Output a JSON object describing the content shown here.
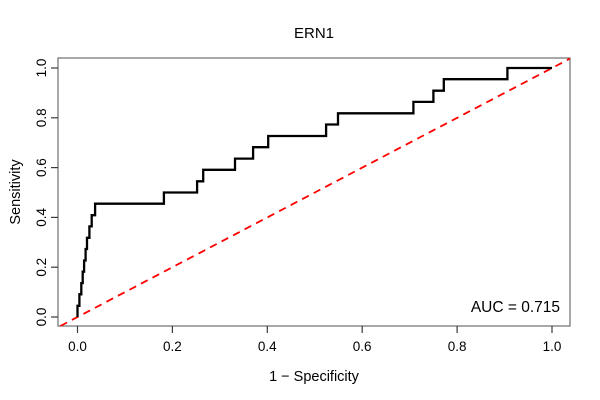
{
  "title": "ERN1",
  "annotation": {
    "auc_label": "AUC = 0.715"
  },
  "axes": {
    "xlabel": "1 − Specificity",
    "ylabel": "Sensitivity",
    "x_tick_labels": [
      "0.0",
      "0.2",
      "0.4",
      "0.6",
      "0.8",
      "1.0"
    ],
    "y_tick_labels": [
      "0.0",
      "0.2",
      "0.4",
      "0.6",
      "0.8",
      "1.0"
    ]
  },
  "colors": {
    "roc_curve": "#000000",
    "diagonal": "#fe0000",
    "box": "#6e6e6e",
    "tick": "#3a3a3a"
  },
  "chart_data": {
    "type": "line",
    "subtype": "roc-step-curve",
    "title": "ERN1",
    "xlabel": "1 − Specificity",
    "ylabel": "Sensitivity",
    "xlim": [
      0,
      1
    ],
    "ylim": [
      0,
      1
    ],
    "grid": false,
    "legend": false,
    "auc": 0.715,
    "x_ticks": [
      0.0,
      0.2,
      0.4,
      0.6,
      0.8,
      1.0
    ],
    "y_ticks": [
      0.0,
      0.2,
      0.4,
      0.6,
      0.8,
      1.0
    ],
    "reference_line": {
      "style": "dashed",
      "color": "#fe0000",
      "from": [
        0,
        0
      ],
      "to": [
        1,
        1
      ]
    },
    "curve_start": [
      0,
      0
    ],
    "curve_end": [
      1,
      1
    ],
    "roc_steps_fpr_sens": [
      [
        0.0,
        0.045
      ],
      [
        0.004,
        0.091
      ],
      [
        0.008,
        0.136
      ],
      [
        0.011,
        0.182
      ],
      [
        0.014,
        0.227
      ],
      [
        0.017,
        0.273
      ],
      [
        0.02,
        0.318
      ],
      [
        0.025,
        0.364
      ],
      [
        0.03,
        0.409
      ],
      [
        0.037,
        0.455
      ],
      [
        0.182,
        0.5
      ],
      [
        0.252,
        0.545
      ],
      [
        0.265,
        0.591
      ],
      [
        0.332,
        0.636
      ],
      [
        0.37,
        0.682
      ],
      [
        0.402,
        0.727
      ],
      [
        0.524,
        0.773
      ],
      [
        0.549,
        0.818
      ],
      [
        0.708,
        0.864
      ],
      [
        0.75,
        0.909
      ],
      [
        0.772,
        0.955
      ],
      [
        0.906,
        1.0
      ]
    ]
  }
}
